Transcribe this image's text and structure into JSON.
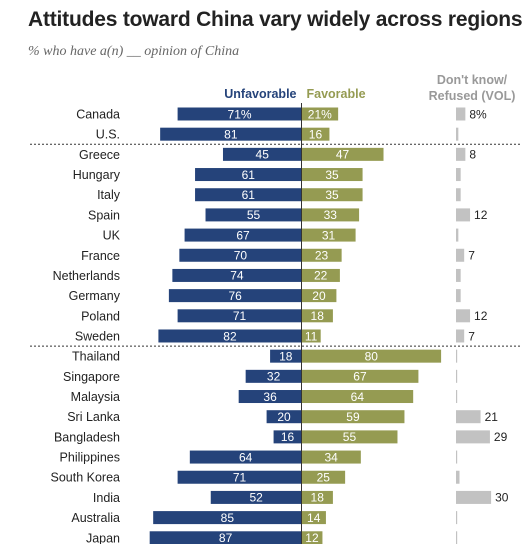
{
  "title": "Attitudes toward China vary widely across regions",
  "subtitle": "% who have a(n) __ opinion of China",
  "colors": {
    "unfavorable": "#25437a",
    "favorable": "#959b52",
    "dontknow": "#c2c2c2"
  },
  "chart_data": {
    "type": "bar",
    "series": [
      {
        "name": "Unfavorable",
        "values": [
          71,
          81,
          45,
          61,
          61,
          55,
          67,
          70,
          74,
          76,
          71,
          82,
          18,
          32,
          36,
          20,
          16,
          64,
          71,
          52,
          85,
          87
        ]
      },
      {
        "name": "Favorable",
        "values": [
          21,
          16,
          47,
          35,
          35,
          33,
          31,
          23,
          22,
          20,
          18,
          11,
          80,
          67,
          64,
          59,
          55,
          34,
          25,
          18,
          14,
          12
        ]
      },
      {
        "name": "Don't know/ Refused (VOL)",
        "values": [
          8,
          2,
          8,
          4,
          4,
          12,
          2,
          7,
          4,
          4,
          12,
          7,
          1,
          1,
          1,
          21,
          29,
          1,
          3,
          30,
          1,
          1
        ]
      }
    ],
    "categories": [
      "Canada",
      "U.S.",
      "Greece",
      "Hungary",
      "Italy",
      "Spain",
      "UK",
      "France",
      "Netherlands",
      "Germany",
      "Poland",
      "Sweden",
      "Thailand",
      "Singapore",
      "Malaysia",
      "Sri Lanka",
      "Bangladesh",
      "Philippines",
      "South Korea",
      "India",
      "Australia",
      "Japan"
    ],
    "unfavorable_labels": [
      "71%",
      "81",
      "45",
      "61",
      "61",
      "55",
      "67",
      "70",
      "74",
      "76",
      "71",
      "82",
      "18",
      "32",
      "36",
      "20",
      "16",
      "64",
      "71",
      "52",
      "85",
      "87"
    ],
    "favorable_labels": [
      "21%",
      "16",
      "47",
      "35",
      "35",
      "33",
      "31",
      "23",
      "22",
      "20",
      "18",
      "11",
      "80",
      "67",
      "64",
      "59",
      "55",
      "34",
      "25",
      "18",
      "14",
      "12"
    ],
    "dontknow_labels": [
      "8%",
      "",
      "8",
      "",
      "",
      "12",
      "",
      "7",
      "",
      "",
      "12",
      "7",
      "",
      "",
      "",
      "21",
      "29",
      "",
      "",
      "30",
      "",
      ""
    ],
    "legend": {
      "unfavorable": "Unfavorable",
      "favorable": "Favorable",
      "dontknow_line1": "Don't know/",
      "dontknow_line2": "Refused (VOL)"
    },
    "group_separators_after": [
      1,
      11
    ]
  }
}
